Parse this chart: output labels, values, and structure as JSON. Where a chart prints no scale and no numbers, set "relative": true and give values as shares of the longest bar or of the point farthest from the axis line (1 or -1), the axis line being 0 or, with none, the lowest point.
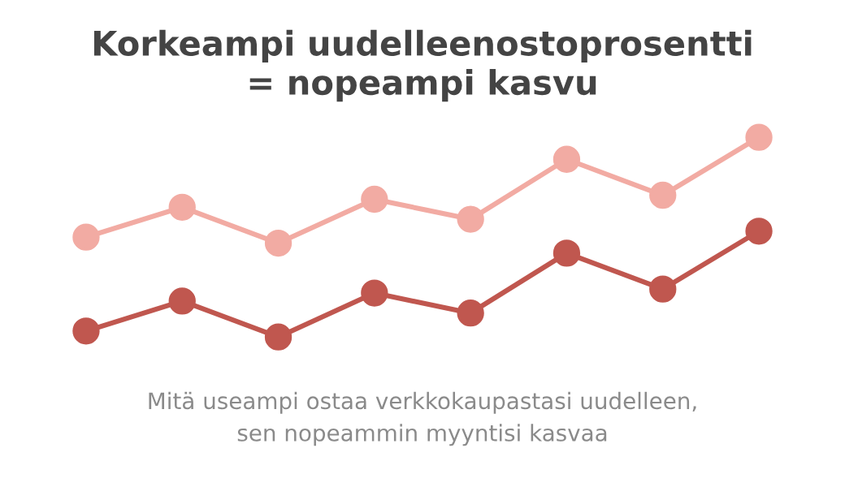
{
  "chart_data": {
    "type": "line",
    "title": "Korkeampi uudelleenostoprosentti\n= nopeampi kasvu",
    "relative": true,
    "marker": "circle",
    "categories": [
      null,
      null,
      null,
      null,
      null,
      null,
      null,
      null
    ],
    "series": [
      {
        "color": "#f2aba3",
        "values": [
          0.5,
          0.65,
          0.47,
          0.69,
          0.59,
          0.89,
          0.71,
          1
        ]
      },
      {
        "color": "#c0574f",
        "values": [
          0.03,
          0.18,
          0,
          0.22,
          0.12,
          0.42,
          0.24,
          0.53
        ]
      }
    ],
    "annotations": [
      "Mitä useampi ostaa verkkokaupastasi uudelleen,\nsen nopeammin myyntisi kasvaa"
    ]
  }
}
